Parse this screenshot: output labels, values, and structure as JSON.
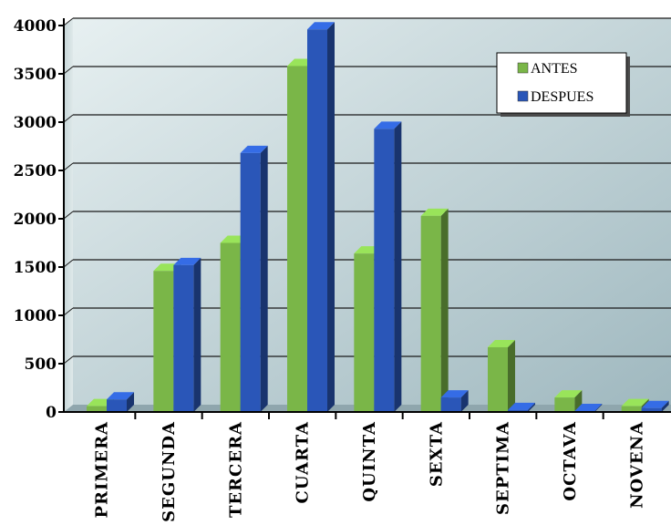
{
  "chart_data": {
    "type": "bar",
    "categories": [
      "PRIMERA",
      "SEGUNDA",
      "TERCERA",
      "CUARTA",
      "QUINTA",
      "SEXTA",
      "SEPTIMA",
      "OCTAVA",
      "NOVENA"
    ],
    "series": [
      {
        "name": "ANTES",
        "color": "#7ab648",
        "values": [
          60,
          1460,
          1750,
          3580,
          1640,
          2030,
          670,
          150,
          60
        ]
      },
      {
        "name": "DESPUES",
        "color": "#2a56b8",
        "values": [
          130,
          1520,
          2680,
          3960,
          2930,
          150,
          20,
          10,
          40
        ]
      }
    ],
    "yticks": [
      0,
      500,
      1000,
      1500,
      2000,
      2500,
      3000,
      3500,
      4000
    ],
    "ylim": [
      0,
      4000
    ],
    "title": "",
    "xlabel": "",
    "ylabel": "",
    "grid": true,
    "legend_position": "top-right",
    "background": "gradient gray-blue"
  }
}
